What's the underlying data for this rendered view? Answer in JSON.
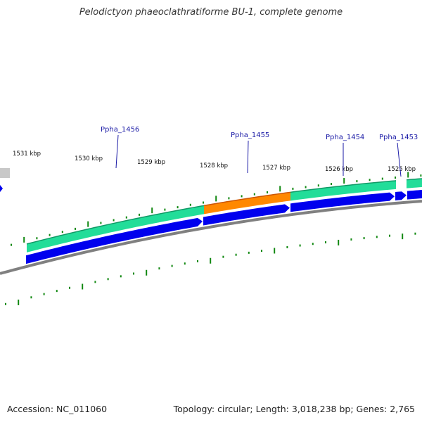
{
  "title": "Pelodictyon phaeoclathratiforme BU-1, complete genome",
  "footer": {
    "accession": "Accession: NC_011060",
    "stats": "Topology: circular; Length: 3,018,238 bp; Genes: 2,765"
  },
  "colors": {
    "gene_green": "#22dd99",
    "gene_orange": "#ff8800",
    "cds_blue": "#0000ee",
    "tick_green": "#118811",
    "backbone_gray": "#808080",
    "label_blue": "#1a1aa6"
  },
  "kbp_labels": [
    "1531 kbp",
    "1530 kbp",
    "1529 kbp",
    "1528 kbp",
    "1527 kbp",
    "1526 kbp",
    "1525 kbp"
  ],
  "gene_labels": [
    "Ppha_1456",
    "Ppha_1455",
    "Ppha_1454",
    "Ppha_1453"
  ],
  "gene_track": [
    {
      "name": "Ppha_1456",
      "type": "green"
    },
    {
      "name": "Ppha_1455",
      "type": "orange"
    },
    {
      "name": "Ppha_1454",
      "type": "green"
    },
    {
      "name": "Ppha_1453",
      "type": "green"
    }
  ]
}
